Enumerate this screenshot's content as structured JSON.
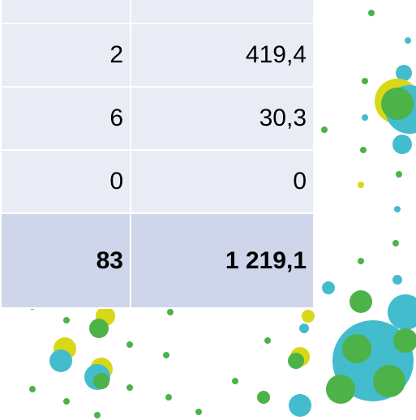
{
  "table": {
    "rows": [
      [
        "2",
        "419,4"
      ],
      [
        "6",
        "30,3"
      ],
      [
        "0",
        "0"
      ]
    ],
    "total": [
      "83",
      "1 219,1"
    ]
  }
}
